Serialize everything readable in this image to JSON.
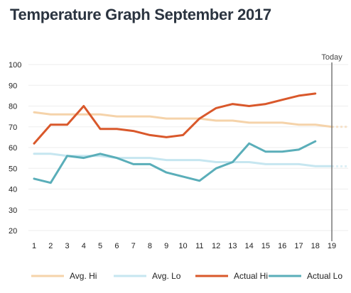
{
  "chart_data": {
    "type": "line",
    "title": "Temperature Graph September 2017",
    "today_label": "Today",
    "today_x": 19,
    "x": [
      1,
      2,
      3,
      4,
      5,
      6,
      7,
      8,
      9,
      10,
      11,
      12,
      13,
      14,
      15,
      16,
      17,
      18,
      19
    ],
    "x_ticks": [
      1,
      2,
      3,
      4,
      5,
      6,
      7,
      8,
      9,
      10,
      11,
      12,
      13,
      14,
      15,
      16,
      17,
      18,
      19
    ],
    "ylim": [
      15,
      105
    ],
    "y_ticks": [
      20,
      30,
      40,
      50,
      60,
      70,
      80,
      90,
      100
    ],
    "grid": "horizontal",
    "legend_position": "bottom",
    "series": [
      {
        "name": "Avg. Hi",
        "color": "#f5d3aa",
        "values": [
          77,
          76,
          76,
          76,
          76,
          75,
          75,
          75,
          74,
          74,
          74,
          73,
          73,
          72,
          72,
          72,
          71,
          71,
          70
        ]
      },
      {
        "name": "Avg. Lo",
        "color": "#c6e6f0",
        "values": [
          57,
          57,
          56,
          56,
          56,
          55,
          55,
          55,
          54,
          54,
          54,
          53,
          53,
          53,
          52,
          52,
          52,
          51,
          51
        ]
      },
      {
        "name": "Actual Hi",
        "color": "#d9582b",
        "values": [
          62,
          71,
          71,
          80,
          69,
          69,
          68,
          66,
          65,
          66,
          74,
          79,
          81,
          80,
          81,
          83,
          85,
          86,
          null
        ]
      },
      {
        "name": "Actual Lo",
        "color": "#5aaeb9",
        "values": [
          45,
          43,
          56,
          55,
          57,
          55,
          52,
          52,
          48,
          46,
          44,
          50,
          53,
          62,
          58,
          58,
          59,
          63,
          null
        ]
      }
    ]
  }
}
